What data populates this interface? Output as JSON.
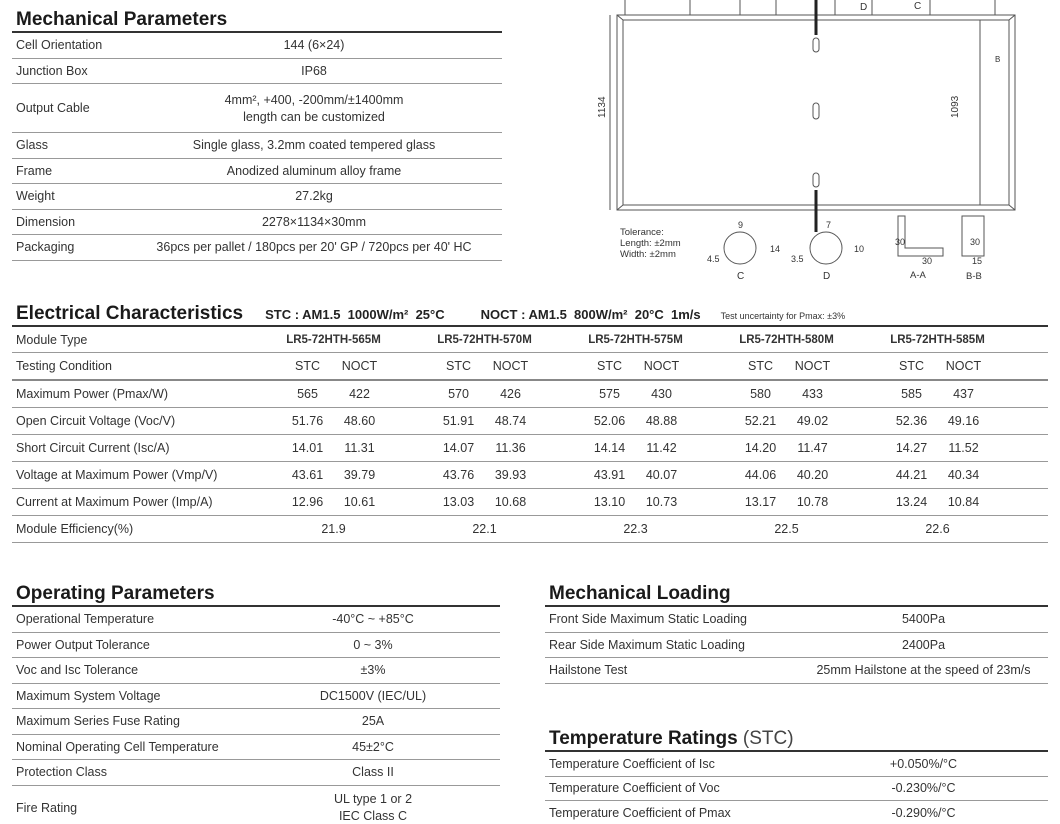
{
  "mechanical": {
    "title": "Mechanical Parameters",
    "rows": [
      {
        "label": "Cell Orientation",
        "value": "144 (6×24)"
      },
      {
        "label": "Junction Box",
        "value": "IP68"
      },
      {
        "label": "Output Cable",
        "value": "4mm², +400, -200mm/±1400mm",
        "value2": "length can be customized"
      },
      {
        "label": "Glass",
        "value": "Single glass, 3.2mm coated tempered glass"
      },
      {
        "label": "Frame",
        "value": "Anodized aluminum alloy frame"
      },
      {
        "label": "Weight",
        "value": "27.2kg"
      },
      {
        "label": "Dimension",
        "value": "2278×1134×30mm"
      },
      {
        "label": "Packaging",
        "value": "36pcs per pallet / 180pcs per 20' GP / 720pcs per 40' HC"
      }
    ]
  },
  "drawing": {
    "width_dim": "1134",
    "inner_dim": "1093",
    "detail_c": "C",
    "detail_d": "D",
    "section_aa": "A-A",
    "section_bb": "B-B",
    "section_b_mark": "B",
    "tolerance": "Tolerance:",
    "tol_length": "Length: ±2mm",
    "tol_width": "Width: ±2mm",
    "c_dims": [
      "9",
      "14",
      "4.5"
    ],
    "d_dims": [
      "7",
      "10",
      "3.5"
    ],
    "aa_dims": [
      "30",
      "30"
    ],
    "bb_dims": [
      "30",
      "15"
    ]
  },
  "electrical": {
    "title": "Electrical Characteristics",
    "stc": "STC : AM1.5  1000W/m²  25°C",
    "noct": "NOCT : AM1.5  800W/m²  20°C  1m/s",
    "uncertainty": "Test uncertainty for Pmax: ±3%",
    "module_type_label": "Module Type",
    "modules": [
      "LR5-72HTH-565M",
      "LR5-72HTH-570M",
      "LR5-72HTH-575M",
      "LR5-72HTH-580M",
      "LR5-72HTH-585M"
    ],
    "testing_label": "Testing Condition",
    "stc_label": "STC",
    "noct_label": "NOCT",
    "rows": [
      {
        "label": "Maximum Power (Pmax/W)",
        "values": [
          [
            "565",
            "422"
          ],
          [
            "570",
            "426"
          ],
          [
            "575",
            "430"
          ],
          [
            "580",
            "433"
          ],
          [
            "585",
            "437"
          ]
        ]
      },
      {
        "label": "Open Circuit Voltage (Voc/V)",
        "values": [
          [
            "51.76",
            "48.60"
          ],
          [
            "51.91",
            "48.74"
          ],
          [
            "52.06",
            "48.88"
          ],
          [
            "52.21",
            "49.02"
          ],
          [
            "52.36",
            "49.16"
          ]
        ]
      },
      {
        "label": "Short Circuit Current (Isc/A)",
        "values": [
          [
            "14.01",
            "11.31"
          ],
          [
            "14.07",
            "11.36"
          ],
          [
            "14.14",
            "11.42"
          ],
          [
            "14.20",
            "11.47"
          ],
          [
            "14.27",
            "11.52"
          ]
        ]
      },
      {
        "label": "Voltage at Maximum Power (Vmp/V)",
        "values": [
          [
            "43.61",
            "39.79"
          ],
          [
            "43.76",
            "39.93"
          ],
          [
            "43.91",
            "40.07"
          ],
          [
            "44.06",
            "40.20"
          ],
          [
            "44.21",
            "40.34"
          ]
        ]
      },
      {
        "label": "Current at Maximum Power (Imp/A)",
        "values": [
          [
            "12.96",
            "10.61"
          ],
          [
            "13.03",
            "10.68"
          ],
          [
            "13.10",
            "10.73"
          ],
          [
            "13.17",
            "10.78"
          ],
          [
            "13.24",
            "10.84"
          ]
        ]
      }
    ],
    "efficiency_label": "Module Efficiency(%)",
    "efficiency": [
      "21.9",
      "22.1",
      "22.3",
      "22.5",
      "22.6"
    ]
  },
  "operating": {
    "title": "Operating Parameters",
    "rows": [
      {
        "label": "Operational Temperature",
        "value": "-40°C ~ +85°C"
      },
      {
        "label": "Power Output Tolerance",
        "value": "0 ~ 3%"
      },
      {
        "label": "Voc and Isc Tolerance",
        "value": "±3%"
      },
      {
        "label": "Maximum System Voltage",
        "value": "DC1500V (IEC/UL)"
      },
      {
        "label": "Maximum Series Fuse Rating",
        "value": "25A"
      },
      {
        "label": "Nominal Operating Cell Temperature",
        "value": "45±2°C"
      },
      {
        "label": "Protection Class",
        "value": "Class II"
      },
      {
        "label": "Fire Rating",
        "value": "UL type 1 or 2",
        "value2": "IEC Class C"
      }
    ]
  },
  "loading": {
    "title": "Mechanical Loading",
    "rows": [
      {
        "label": "Front Side Maximum Static Loading",
        "value": "5400Pa"
      },
      {
        "label": "Rear Side Maximum Static Loading",
        "value": "2400Pa"
      },
      {
        "label": "Hailstone Test",
        "value": "25mm Hailstone at the speed of 23m/s"
      }
    ]
  },
  "temperature": {
    "title": "Temperature Ratings",
    "title_suffix": " (STC)",
    "rows": [
      {
        "label": "Temperature Coefficient of  Isc",
        "value": "+0.050%/°C"
      },
      {
        "label": "Temperature Coefficient of  Voc",
        "value": "-0.230%/°C"
      },
      {
        "label": "Temperature Coefficient of  Pmax",
        "value": "-0.290%/°C"
      }
    ]
  }
}
